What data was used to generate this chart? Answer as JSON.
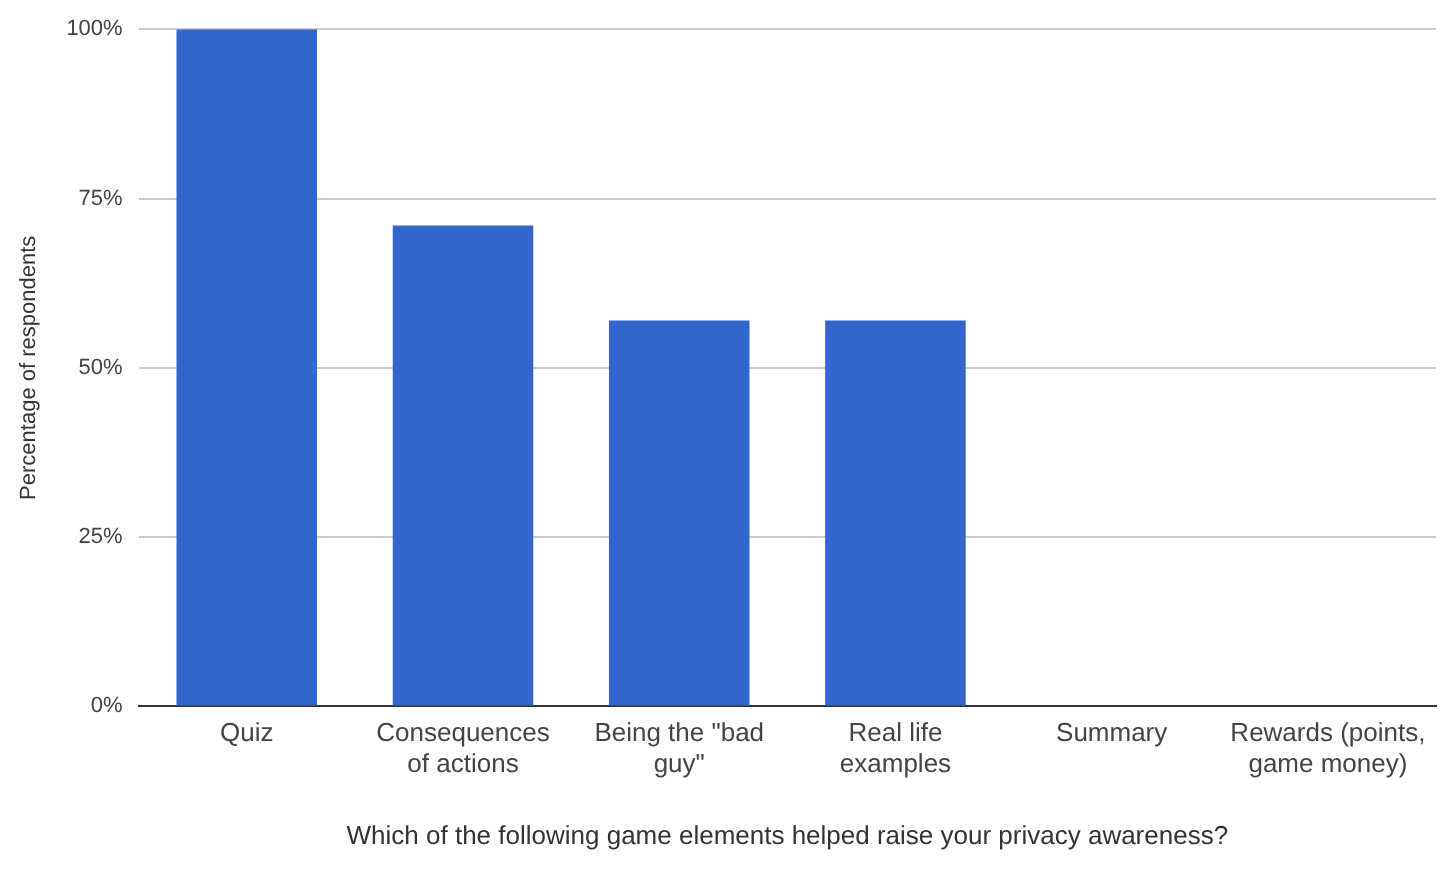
{
  "chart_data": {
    "type": "bar",
    "xlabel": "Which of the following game elements helped raise your privacy awareness?",
    "ylabel": "Percentage of respondents",
    "categories": [
      "Quiz",
      "Consequences of actions",
      "Being the \"bad guy\"",
      "Real life examples",
      "Summary",
      "Rewards (points, game money)"
    ],
    "values": [
      100,
      71,
      57,
      57,
      0,
      0
    ],
    "color": "#3366cc",
    "ylim": [
      0,
      100
    ],
    "yticks": [
      {
        "value": 0,
        "label": "0%"
      },
      {
        "value": 25,
        "label": "25%"
      },
      {
        "value": 50,
        "label": "50%"
      },
      {
        "value": 75,
        "label": "75%"
      },
      {
        "value": 100,
        "label": "100%"
      }
    ],
    "grid": "y",
    "legend": false
  }
}
